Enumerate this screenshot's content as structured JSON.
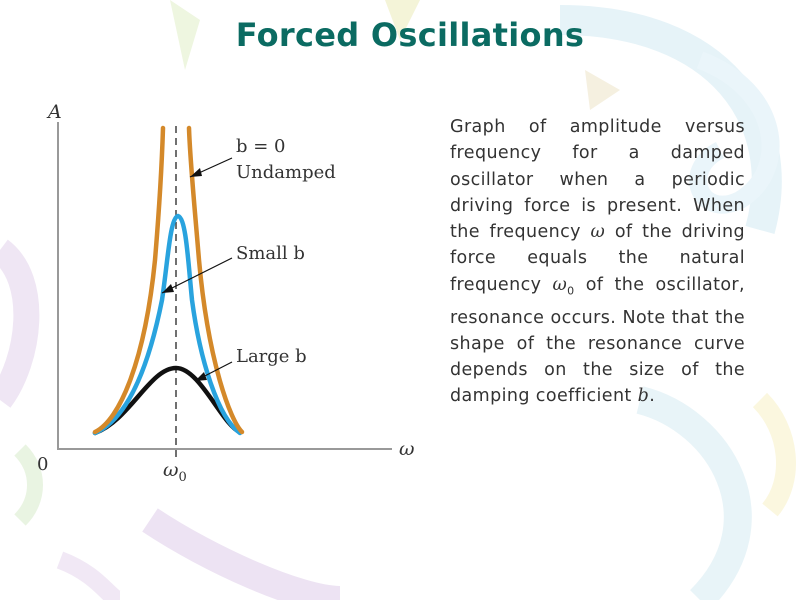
{
  "title": "Forced Oscillations",
  "diagram": {
    "y_axis_label": "A",
    "x_axis_label": "ω",
    "origin_label": "0",
    "omega0_label": "ω",
    "omega0_sub": "0",
    "curves": [
      {
        "line1": "b = 0",
        "line2": "Undamped",
        "color": "#d4892a"
      },
      {
        "line1": "Small b",
        "color": "#29a3de"
      },
      {
        "line1": "Large b",
        "color": "#111111"
      }
    ]
  },
  "description": {
    "text_before_omega": "Graph of amplitude versus frequency for a damped oscillator when a periodic driving force is present. When the frequency ",
    "omega": "ω",
    "text_middle": " of the driving force equals the natural frequency ",
    "omega0": "ω",
    "omega0_sub": "0",
    "text_after": " of the oscillator, resonance occurs. Note that the shape of the resonance curve depends on the size of the damping coefficient ",
    "b": "b",
    "end": "."
  }
}
